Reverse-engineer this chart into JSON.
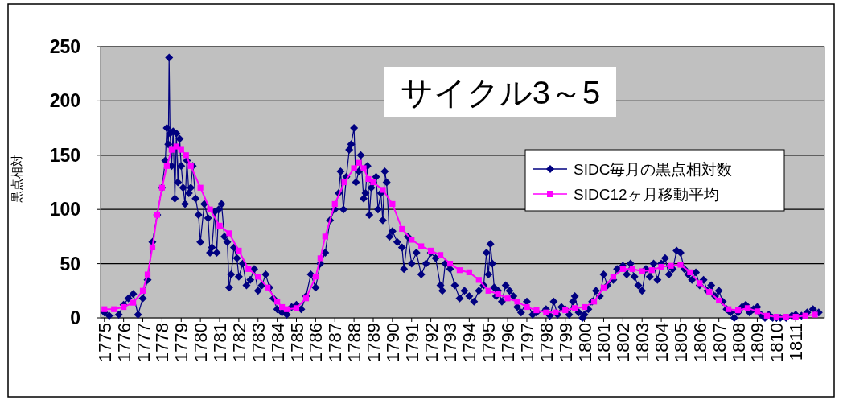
{
  "chart_data": {
    "type": "line",
    "title": "サイクル3～5",
    "ylabel": "黒点相対",
    "xlim": [
      1774.8,
      1812.5
    ],
    "ylim": [
      0,
      250
    ],
    "xticks": [
      1775,
      1776,
      1777,
      1778,
      1779,
      1780,
      1781,
      1782,
      1783,
      1784,
      1785,
      1786,
      1787,
      1788,
      1789,
      1790,
      1791,
      1792,
      1793,
      1794,
      1795,
      1796,
      1797,
      1798,
      1799,
      1800,
      1801,
      1802,
      1803,
      1804,
      1805,
      1806,
      1807,
      1808,
      1809,
      1810,
      1811
    ],
    "yticks": [
      0,
      50,
      100,
      150,
      200,
      250
    ],
    "grid": "y",
    "legend": "right",
    "line_style": "solid",
    "series": [
      {
        "name": "SIDC毎月の黒点相対数",
        "color": "#000080",
        "marker": "diamond",
        "x": [
          1775.0,
          1775.25,
          1775.75,
          1776.0,
          1776.25,
          1776.5,
          1776.75,
          1777.0,
          1777.25,
          1777.5,
          1777.75,
          1778.0,
          1778.17,
          1778.25,
          1778.33,
          1778.37,
          1778.42,
          1778.5,
          1778.58,
          1778.67,
          1778.75,
          1778.83,
          1778.92,
          1779.0,
          1779.1,
          1779.2,
          1779.3,
          1779.4,
          1779.5,
          1779.6,
          1779.75,
          1779.9,
          1780.0,
          1780.2,
          1780.4,
          1780.5,
          1780.6,
          1780.75,
          1780.85,
          1780.95,
          1781.1,
          1781.25,
          1781.4,
          1781.5,
          1781.6,
          1781.75,
          1781.9,
          1782.0,
          1782.2,
          1782.4,
          1782.6,
          1782.8,
          1783.0,
          1783.2,
          1783.4,
          1783.6,
          1783.8,
          1784.0,
          1784.25,
          1784.5,
          1784.75,
          1785.0,
          1785.25,
          1785.5,
          1785.75,
          1786.0,
          1786.25,
          1786.5,
          1786.75,
          1787.0,
          1787.2,
          1787.3,
          1787.45,
          1787.6,
          1787.75,
          1787.85,
          1788.0,
          1788.1,
          1788.25,
          1788.35,
          1788.5,
          1788.6,
          1788.7,
          1788.8,
          1788.9,
          1789.0,
          1789.15,
          1789.25,
          1789.4,
          1789.5,
          1789.6,
          1789.7,
          1789.85,
          1790.0,
          1790.25,
          1790.5,
          1790.6,
          1790.8,
          1791.0,
          1791.25,
          1791.5,
          1791.75,
          1792.0,
          1792.25,
          1792.5,
          1792.6,
          1792.75,
          1793.0,
          1793.25,
          1793.5,
          1793.75,
          1794.0,
          1794.25,
          1794.5,
          1794.75,
          1794.9,
          1795.0,
          1795.1,
          1795.2,
          1795.3,
          1795.4,
          1795.5,
          1795.7,
          1795.9,
          1796.1,
          1796.3,
          1796.5,
          1796.7,
          1797.0,
          1797.3,
          1797.5,
          1798.0,
          1798.2,
          1798.4,
          1798.6,
          1798.8,
          1799.0,
          1799.2,
          1799.4,
          1799.5,
          1799.7,
          1799.9,
          1800.0,
          1800.2,
          1800.4,
          1800.6,
          1800.8,
          1801.0,
          1801.2,
          1801.5,
          1801.7,
          1802.0,
          1802.2,
          1802.4,
          1802.6,
          1802.8,
          1803.0,
          1803.2,
          1803.4,
          1803.6,
          1803.8,
          1804.0,
          1804.2,
          1804.4,
          1804.6,
          1804.8,
          1805.0,
          1805.2,
          1805.4,
          1805.6,
          1805.8,
          1806.0,
          1806.2,
          1806.4,
          1806.6,
          1806.8,
          1807.0,
          1807.2,
          1807.4,
          1807.6,
          1807.8,
          1808.0,
          1808.2,
          1808.4,
          1808.6,
          1808.8,
          1809.0,
          1809.2,
          1809.4,
          1809.6,
          1809.8,
          1810.0,
          1810.2,
          1810.5,
          1810.8,
          1811.0,
          1811.3,
          1811.6,
          1811.9,
          1812.2
        ],
        "values": [
          5,
          2,
          3,
          12,
          18,
          22,
          3,
          18,
          35,
          70,
          95,
          120,
          145,
          175,
          160,
          240,
          170,
          140,
          172,
          110,
          170,
          125,
          165,
          140,
          120,
          105,
          145,
          115,
          120,
          140,
          110,
          95,
          70,
          105,
          92,
          60,
          65,
          98,
          60,
          100,
          105,
          75,
          70,
          28,
          40,
          65,
          55,
          38,
          50,
          30,
          35,
          45,
          25,
          30,
          40,
          28,
          18,
          8,
          5,
          3,
          10,
          12,
          8,
          20,
          40,
          28,
          50,
          60,
          90,
          100,
          115,
          135,
          100,
          130,
          155,
          160,
          175,
          125,
          135,
          150,
          110,
          115,
          140,
          95,
          120,
          125,
          130,
          100,
          115,
          90,
          135,
          125,
          75,
          80,
          70,
          65,
          45,
          75,
          50,
          60,
          40,
          50,
          60,
          55,
          30,
          25,
          50,
          45,
          30,
          18,
          25,
          20,
          15,
          25,
          30,
          60,
          40,
          68,
          50,
          28,
          20,
          25,
          15,
          30,
          25,
          20,
          10,
          5,
          15,
          3,
          5,
          8,
          2,
          15,
          3,
          10,
          8,
          3,
          15,
          20,
          5,
          0,
          3,
          8,
          15,
          25,
          20,
          40,
          30,
          35,
          45,
          48,
          40,
          50,
          38,
          30,
          25,
          45,
          38,
          50,
          35,
          50,
          55,
          40,
          45,
          62,
          60,
          45,
          40,
          35,
          42,
          30,
          35,
          25,
          30,
          20,
          25,
          15,
          8,
          5,
          0,
          5,
          10,
          12,
          5,
          8,
          10,
          3,
          0,
          3,
          0,
          0,
          0,
          0,
          2,
          3,
          2,
          5,
          8,
          5
        ]
      },
      {
        "name": "SIDC12ヶ月移動平均",
        "color": "#ff00ff",
        "marker": "square",
        "x": [
          1775.0,
          1775.5,
          1776.0,
          1776.5,
          1777.0,
          1777.25,
          1777.5,
          1777.75,
          1778.0,
          1778.25,
          1778.5,
          1778.75,
          1779.0,
          1779.25,
          1779.5,
          1780.0,
          1780.5,
          1781.0,
          1781.5,
          1782.0,
          1782.5,
          1783.0,
          1783.5,
          1784.0,
          1784.25,
          1784.5,
          1785.0,
          1785.5,
          1786.0,
          1786.25,
          1786.5,
          1787.0,
          1787.5,
          1788.0,
          1788.25,
          1788.5,
          1788.75,
          1789.0,
          1789.5,
          1790.0,
          1790.5,
          1791.0,
          1791.5,
          1792.0,
          1792.5,
          1793.0,
          1793.5,
          1794.0,
          1794.5,
          1795.0,
          1795.5,
          1796.0,
          1796.5,
          1797.0,
          1797.5,
          1798.0,
          1798.5,
          1799.0,
          1799.5,
          1800.0,
          1800.5,
          1801.0,
          1801.5,
          1802.0,
          1802.5,
          1803.0,
          1803.5,
          1804.0,
          1804.5,
          1805.0,
          1805.5,
          1806.0,
          1806.5,
          1807.0,
          1807.5,
          1808.0,
          1808.5,
          1809.0,
          1809.5,
          1810.0,
          1810.5,
          1811.0,
          1811.5,
          1812.0
        ],
        "values": [
          8,
          8,
          10,
          14,
          25,
          40,
          65,
          95,
          120,
          140,
          155,
          158,
          155,
          150,
          140,
          120,
          100,
          85,
          78,
          62,
          45,
          38,
          28,
          15,
          10,
          8,
          9,
          18,
          38,
          55,
          75,
          105,
          125,
          138,
          143,
          138,
          128,
          125,
          118,
          105,
          82,
          72,
          66,
          62,
          58,
          50,
          44,
          42,
          35,
          25,
          22,
          18,
          15,
          10,
          7,
          5,
          5,
          7,
          9,
          10,
          15,
          28,
          38,
          45,
          45,
          43,
          44,
          47,
          48,
          49,
          42,
          32,
          24,
          16,
          8,
          7,
          9,
          6,
          2,
          1,
          1,
          1,
          2,
          3
        ]
      }
    ]
  }
}
